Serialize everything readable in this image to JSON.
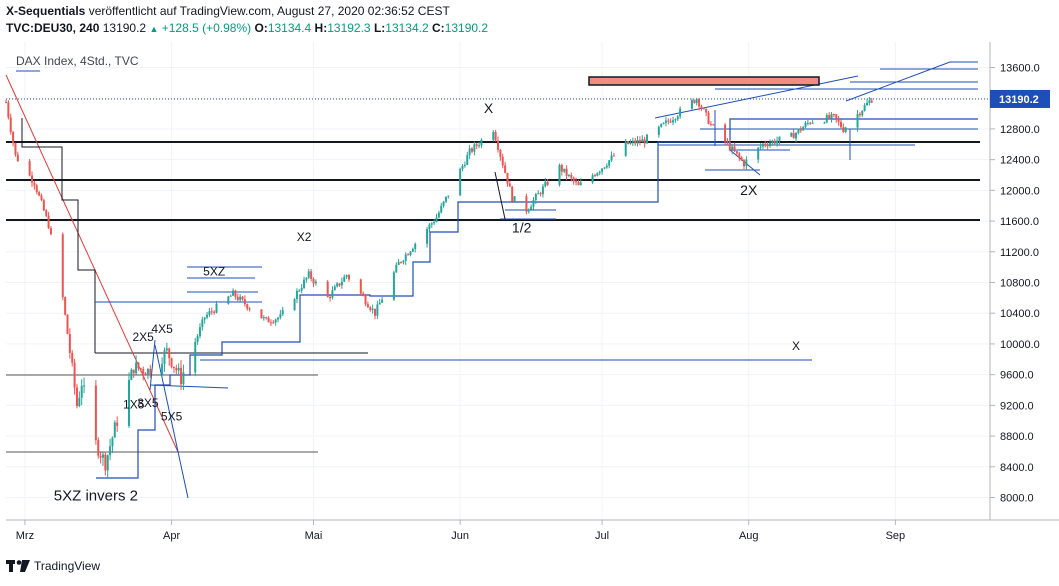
{
  "header": {
    "title_bold": "X-Sequentials",
    "title_rest": " veröffentlicht auf TradingView.com, August 27, 2020 02:36:52 CEST",
    "symbol": "TVC:DEU30, 240",
    "last": "13190.2",
    "change": "+128.5 (+0.98%)",
    "o_label": "O:",
    "o": "13134.4",
    "h_label": "H:",
    "h": "13192.3",
    "l_label": "L:",
    "l": "13134.2",
    "c_label": "C:",
    "c": "13190.2"
  },
  "footer": {
    "brand": "TradingView",
    "logo_icon": "tradingview-logo-icon"
  },
  "colors": {
    "up": "#26a69a",
    "down": "#ef5350",
    "blue": "#1e4eb8",
    "priceBadge": "#1e4eb8",
    "zone": "#f28b82"
  },
  "chart_data": {
    "type": "candlestick",
    "title": "DAX Index, 4Std., TVC",
    "ylim": [
      7700,
      13800
    ],
    "yticks": [
      8000,
      8400,
      8800,
      9200,
      9600,
      10000,
      10400,
      10800,
      11200,
      11600,
      12000,
      12400,
      12800,
      13200,
      13600
    ],
    "ytick_labels": [
      "8000.0",
      "8400.0",
      "8800.0",
      "9200.0",
      "9600.0",
      "10000.0",
      "10400.0",
      "10800.0",
      "11200.0",
      "11600.0",
      "12000.0",
      "12400.0",
      "12800.0",
      "13200.0",
      "13600.0"
    ],
    "current_price": 13190.2,
    "current_price_label": "13190.2",
    "x_range": [
      "2020-02-26",
      "2020-09-21"
    ],
    "months": [
      {
        "label": "Mrz",
        "date": "2020-03-01"
      },
      {
        "label": "Apr",
        "date": "2020-04-01"
      },
      {
        "label": "Mai",
        "date": "2020-05-01"
      },
      {
        "label": "Jun",
        "date": "2020-06-01"
      },
      {
        "label": "Jul",
        "date": "2020-07-01"
      },
      {
        "label": "Aug",
        "date": "2020-08-01"
      },
      {
        "label": "Sep",
        "date": "2020-09-01"
      }
    ],
    "close_path": [
      [
        "2020-02-26",
        13150
      ],
      [
        "2020-02-28",
        12450
      ],
      [
        "2020-03-03",
        12100
      ],
      [
        "2020-03-06",
        11550
      ],
      [
        "2020-03-09",
        10600
      ],
      [
        "2020-03-12",
        9200
      ],
      [
        "2020-03-13",
        9500
      ],
      [
        "2020-03-16",
        8700
      ],
      [
        "2020-03-18",
        8450
      ],
      [
        "2020-03-20",
        8900
      ],
      [
        "2020-03-24",
        9700
      ],
      [
        "2020-03-27",
        9650
      ],
      [
        "2020-03-31",
        9900
      ],
      [
        "2020-04-03",
        9550
      ],
      [
        "2020-04-08",
        10350
      ],
      [
        "2020-04-14",
        10650
      ],
      [
        "2020-04-21",
        10300
      ],
      [
        "2020-04-24",
        10350
      ],
      [
        "2020-04-30",
        10900
      ],
      [
        "2020-05-04",
        10600
      ],
      [
        "2020-05-08",
        10900
      ],
      [
        "2020-05-14",
        10400
      ],
      [
        "2020-05-19",
        11050
      ],
      [
        "2020-05-27",
        11650
      ],
      [
        "2020-06-03",
        12500
      ],
      [
        "2020-06-08",
        12800
      ],
      [
        "2020-06-12",
        11900
      ],
      [
        "2020-06-15",
        11750
      ],
      [
        "2020-06-22",
        12300
      ],
      [
        "2020-06-26",
        12050
      ],
      [
        "2020-07-01",
        12300
      ],
      [
        "2020-07-06",
        12600
      ],
      [
        "2020-07-10",
        12650
      ],
      [
        "2020-07-15",
        12900
      ],
      [
        "2020-07-21",
        13200
      ],
      [
        "2020-07-24",
        12850
      ],
      [
        "2020-07-31",
        12350
      ],
      [
        "2020-08-04",
        12600
      ],
      [
        "2020-08-10",
        12700
      ],
      [
        "2020-08-14",
        12900
      ],
      [
        "2020-08-19",
        12950
      ],
      [
        "2020-08-21",
        12800
      ],
      [
        "2020-08-27",
        13190
      ]
    ],
    "annotations": [
      {
        "text": "X",
        "date": "2020-06-07",
        "price": 13010,
        "size": 14
      },
      {
        "text": "X2",
        "date": "2020-04-29",
        "price": 11340,
        "size": 12
      },
      {
        "text": "1/2",
        "date": "2020-06-14",
        "price": 11450,
        "size": 14
      },
      {
        "text": "2X",
        "date": "2020-08-01",
        "price": 11940,
        "size": 14
      },
      {
        "text": "X",
        "date": "2020-08-11",
        "price": 9920,
        "size": 12
      },
      {
        "text": "5XZ",
        "date": "2020-04-10",
        "price": 10890,
        "size": 12
      },
      {
        "text": "2X5",
        "date": "2020-03-26",
        "price": 10040,
        "size": 12
      },
      {
        "text": "4X5",
        "date": "2020-03-30",
        "price": 10140,
        "size": 12
      },
      {
        "text": "1X5",
        "date": "2020-03-24",
        "price": 9160,
        "size": 12
      },
      {
        "text": "3X5",
        "date": "2020-03-27",
        "price": 9180,
        "size": 12
      },
      {
        "text": "5X5",
        "date": "2020-04-01",
        "price": 9000,
        "size": 12
      },
      {
        "text": "5XZ invers 2",
        "date": "2020-03-16",
        "price": 7960,
        "size": 15
      }
    ]
  }
}
